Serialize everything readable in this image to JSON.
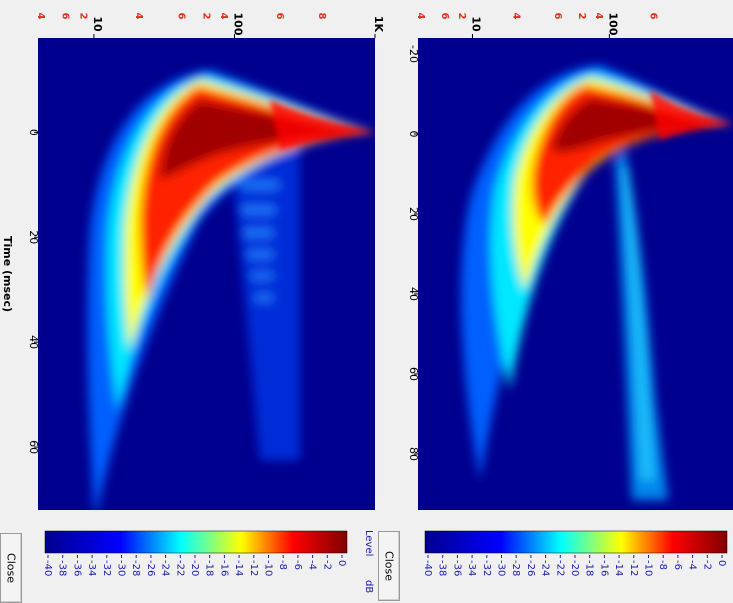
{
  "buttons": {
    "close_label": "Close"
  },
  "colorbar": {
    "title": "Level",
    "unit": "dB",
    "ticks": [
      0,
      -2,
      -4,
      -6,
      -8,
      -10,
      -12,
      -14,
      -16,
      -18,
      -20,
      -22,
      -24,
      -26,
      -28,
      -30,
      -32,
      -34,
      -36,
      -38,
      -40
    ]
  },
  "chart_data": [
    {
      "type": "heatmap",
      "xlabel": "",
      "ylabel": "",
      "x_ticks": [
        "-20",
        "0",
        "20",
        "40",
        "60",
        "80"
      ],
      "y_major_labels": [
        "10",
        "100"
      ],
      "y_minor_labels": [
        "4",
        "6",
        "2",
        "4",
        "6",
        "2",
        "4",
        "6"
      ],
      "time_range_ms": [
        -24,
        94
      ],
      "freq_range_hz": [
        4,
        800
      ],
      "freq_scale": "log",
      "level_range_db": [
        -40,
        0
      ],
      "colormap": "jet"
    },
    {
      "type": "heatmap",
      "xlabel": "Time (msec)",
      "ylabel": "",
      "x_ticks": [
        "0",
        "20",
        "40",
        "60"
      ],
      "y_major_labels": [
        "10",
        "100",
        "1K"
      ],
      "y_minor_labels": [
        "4",
        "6",
        "2",
        "4",
        "6",
        "2",
        "4",
        "6",
        "8"
      ],
      "time_range_ms": [
        -18,
        72
      ],
      "freq_range_hz": [
        4,
        1000
      ],
      "freq_scale": "log",
      "level_range_db": [
        -40,
        0
      ],
      "colormap": "jet"
    }
  ]
}
